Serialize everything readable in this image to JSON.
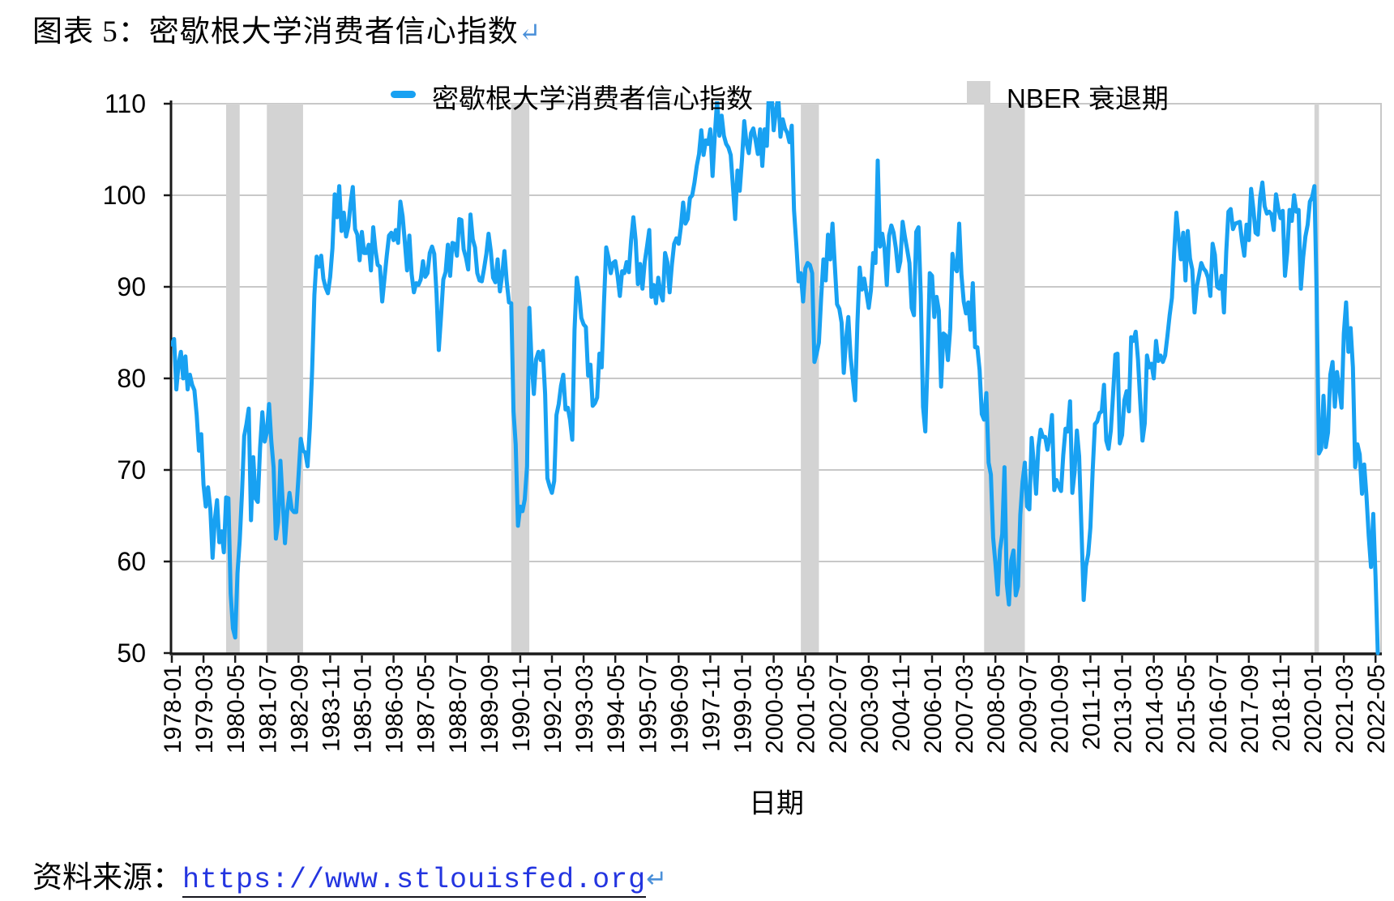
{
  "title": {
    "text": "图表 5：密歇根大学消费者信心指数",
    "return_mark": "↵"
  },
  "legend": {
    "series_label": "密歇根大学消费者信心指数",
    "recession_label": "NBER 衰退期"
  },
  "source": {
    "label": "资料来源：",
    "link": "https://www.stlouisfed.org",
    "return_mark": "↵"
  },
  "colors": {
    "line": "#18a1f2",
    "recession_band": "#d3d3d3",
    "gridline": "#c8c8c8",
    "axis": "#1a1a1a",
    "link": "#2435e0",
    "return_mark": "#4a90d9"
  },
  "chart_data": {
    "type": "line",
    "title": "密歇根大学消费者信心指数",
    "xlabel": "日期",
    "ylabel": "",
    "ylim": [
      50,
      110
    ],
    "yticks": [
      50,
      60,
      70,
      80,
      90,
      100,
      110
    ],
    "grid": "horizontal",
    "legend_position": "top-center",
    "x_start": "1978-01",
    "x_end": "2022-06",
    "x_tick_step_months": 14,
    "x_tick_labels": [
      "1978-01",
      "1979-03",
      "1980-05",
      "1981-07",
      "1982-09",
      "1983-11",
      "1985-01",
      "1986-03",
      "1987-05",
      "1988-07",
      "1989-09",
      "1990-11",
      "1992-01",
      "1993-03",
      "1994-05",
      "1995-07",
      "1996-09",
      "1997-11",
      "1999-01",
      "2000-03",
      "2001-05",
      "2002-07",
      "2003-09",
      "2004-11",
      "2006-01",
      "2007-03",
      "2008-05",
      "2009-07",
      "2010-09",
      "2011-11",
      "2013-01",
      "2014-03",
      "2015-05",
      "2016-07",
      "2017-09",
      "2018-11",
      "2020-01",
      "2021-03",
      "2022-05"
    ],
    "series": [
      {
        "name": "密歇根大学消费者信心指数",
        "color": "#18a1f2",
        "frequency": "monthly",
        "values": [
          83.7,
          84.3,
          78.8,
          81.6,
          82.9,
          80,
          82.4,
          78.8,
          80.4,
          79.3,
          78.7,
          76,
          72.1,
          73.9,
          68.4,
          66,
          68.1,
          65.8,
          60.4,
          64.5,
          66.7,
          62.1,
          63.3,
          61,
          67,
          66.9,
          56.5,
          52.7,
          51.7,
          58.7,
          62.3,
          67.3,
          73.7,
          75,
          76.7,
          64.5,
          71.4,
          66.9,
          66.5,
          72.4,
          76.3,
          73.1,
          74.1,
          77.2,
          73.1,
          70.3,
          62.5,
          64.3,
          71,
          66.5,
          62,
          65.5,
          67.5,
          65.7,
          65.4,
          65.4,
          69.3,
          73.4,
          72.1,
          71.9,
          70.4,
          74.6,
          80.8,
          89.1,
          93.3,
          92.2,
          93.4,
          90.9,
          89.9,
          89.3,
          91.1,
          94.2,
          100.1,
          97.6,
          101,
          96.1,
          98.1,
          95.5,
          96.6,
          99.1,
          100.9,
          96.3,
          95.7,
          92.9,
          96,
          93.7,
          93.7,
          94.6,
          91.8,
          96.5,
          94,
          92.4,
          92.2,
          88.4,
          90.9,
          93.4,
          95.6,
          95.9,
          95.1,
          96.2,
          94.8,
          99.3,
          97.7,
          94.9,
          91.8,
          95.6,
          91.4,
          89.4,
          90.4,
          90.2,
          90.8,
          92.8,
          91.1,
          91.5,
          93.7,
          94.4,
          93.6,
          89.3,
          83.1,
          86.8,
          90.8,
          91.6,
          94.6,
          91.2,
          94.8,
          94.7,
          93.4,
          97.4,
          97.3,
          94.1,
          93.2,
          91.9,
          97.9,
          95.2,
          94.3,
          91.5,
          90.7,
          90.6,
          92,
          93.6,
          95.8,
          93.9,
          91,
          90.5,
          93,
          89.5,
          91.3,
          93.9,
          90.6,
          88.3,
          88.2,
          76.4,
          72.8,
          63.9,
          66,
          65.5,
          66.8,
          70.4,
          87.7,
          81.8,
          78.3,
          82.1,
          82.9,
          82,
          83,
          78.3,
          69.1,
          68.2,
          67.5,
          68.8,
          76,
          77.2,
          79.2,
          80.4,
          76.6,
          76.8,
          75.5,
          73.3,
          85.3,
          91,
          89.3,
          86.6,
          85.9,
          85.6,
          80.3,
          81.5,
          77,
          77.3,
          77.9,
          82.7,
          81.2,
          88.2,
          94.3,
          93.2,
          91.5,
          92.6,
          92.8,
          91.2,
          89,
          91.7,
          91.5,
          92.7,
          91.6,
          95.1,
          97.6,
          95.1,
          90.3,
          92.5,
          89.8,
          92.7,
          94.4,
          96.2,
          88.9,
          90.2,
          88.2,
          91,
          89.3,
          88.5,
          93.7,
          92.7,
          89.4,
          92.4,
          94.7,
          95.3,
          94.7,
          96.5,
          99.2,
          96.9,
          97.4,
          99.7,
          100,
          101.4,
          103.2,
          104.5,
          107.1,
          104.4,
          106,
          105.6,
          107.2,
          102.1,
          106.6,
          110.4,
          106.5,
          108.7,
          106.5,
          105.6,
          105.2,
          104.4,
          100.9,
          97.4,
          102.7,
          100.5,
          103.9,
          108.1,
          105.7,
          104.6,
          106.8,
          107.3,
          106,
          104.5,
          107.2,
          103.2,
          107.2,
          105.4,
          112,
          111.3,
          107.1,
          109.2,
          110.7,
          106.4,
          108.3,
          107.3,
          106.8,
          105.8,
          107.6,
          98.4,
          94.7,
          90.6,
          91.5,
          88.4,
          92,
          92.6,
          92.4,
          91.5,
          81.8,
          82.7,
          83.9,
          88.8,
          93,
          90.7,
          95.7,
          93,
          96.9,
          92.4,
          88.1,
          87.6,
          86.1,
          80.6,
          84.2,
          86.7,
          82.4,
          79.9,
          77.6,
          86,
          92.1,
          89.7,
          90.9,
          89.3,
          87.7,
          89.6,
          93.7,
          92.6,
          103.8,
          94.4,
          95.8,
          94.2,
          90.2,
          95.6,
          96.7,
          95.9,
          94.2,
          91.7,
          92.8,
          97.1,
          95.5,
          94.1,
          92.6,
          87.7,
          86.9,
          96,
          96.5,
          89.1,
          76.9,
          74.2,
          81.6,
          91.5,
          91.2,
          86.7,
          88.9,
          87.4,
          79.1,
          84.9,
          84.7,
          82,
          85.4,
          93.6,
          92.1,
          91.7,
          96.9,
          91.3,
          88.4,
          87.1,
          88.3,
          85.3,
          90.4,
          83.4,
          83.4,
          80.9,
          76.1,
          75.5,
          78.4,
          70.8,
          69.5,
          62.6,
          59.8,
          56.4,
          61.2,
          63,
          70.3,
          57.6,
          55.3,
          60.1,
          61.2,
          56.3,
          57.3,
          65.1,
          68.7,
          70.8,
          66,
          65.7,
          73.5,
          70.6,
          67.4,
          72.5,
          74.4,
          73.6,
          73.6,
          72.2,
          73.6,
          76,
          67.8,
          68.9,
          68.2,
          67.7,
          71.6,
          74.5,
          74.2,
          77.5,
          67.5,
          69.8,
          74.3,
          71.5,
          63.7,
          55.8,
          59.5,
          60.8,
          63.7,
          69.9,
          75,
          75.3,
          76.2,
          76.4,
          79.3,
          73.2,
          72.3,
          74.3,
          78.3,
          82.6,
          82.7,
          72.9,
          73.8,
          77.6,
          78.6,
          76.4,
          84.5,
          84.1,
          85.1,
          82.1,
          77.5,
          73.2,
          75.1,
          82.5,
          81.2,
          81.6,
          80,
          84.1,
          81.9,
          82.5,
          81.8,
          82.5,
          84.6,
          86.9,
          88.8,
          93.6,
          98.1,
          95.4,
          93,
          95.9,
          90.7,
          96.1,
          93.1,
          91.9,
          87.2,
          90,
          91.3,
          92.6,
          92,
          91.7,
          91,
          89,
          94.7,
          93.5,
          90,
          89.8,
          91.2,
          87.2,
          93.8,
          98.2,
          98.5,
          96.3,
          96.9,
          97,
          97.1,
          95,
          93.4,
          96.8,
          95.1,
          100.7,
          98.5,
          95.9,
          95.7,
          99.7,
          101.4,
          98.8,
          98,
          98.2,
          97.9,
          96.2,
          100.1,
          98.6,
          97.5,
          98.3,
          91.2,
          93.8,
          98.4,
          97.2,
          100,
          98.2,
          98.4,
          89.8,
          93.2,
          95.5,
          96.8,
          99.3,
          99.8,
          101,
          89.1,
          71.8,
          72.3,
          78.1,
          72.5,
          74.1,
          80.4,
          81.8,
          76.9,
          80.7,
          79,
          76.8,
          84.9,
          88.3,
          82.9,
          85.5,
          81.2,
          70.3,
          72.8,
          71.7,
          67.4,
          70.6,
          67.2,
          62.8,
          59.4,
          65.2,
          58.4,
          50
        ]
      }
    ],
    "recessions": {
      "name": "NBER 衰退期",
      "color": "#d3d3d3",
      "bands": [
        [
          "1980-01",
          "1980-07"
        ],
        [
          "1981-07",
          "1982-11"
        ],
        [
          "1990-07",
          "1991-03"
        ],
        [
          "2001-03",
          "2001-11"
        ],
        [
          "2007-12",
          "2009-06"
        ],
        [
          "2020-02",
          "2020-04"
        ]
      ]
    }
  }
}
